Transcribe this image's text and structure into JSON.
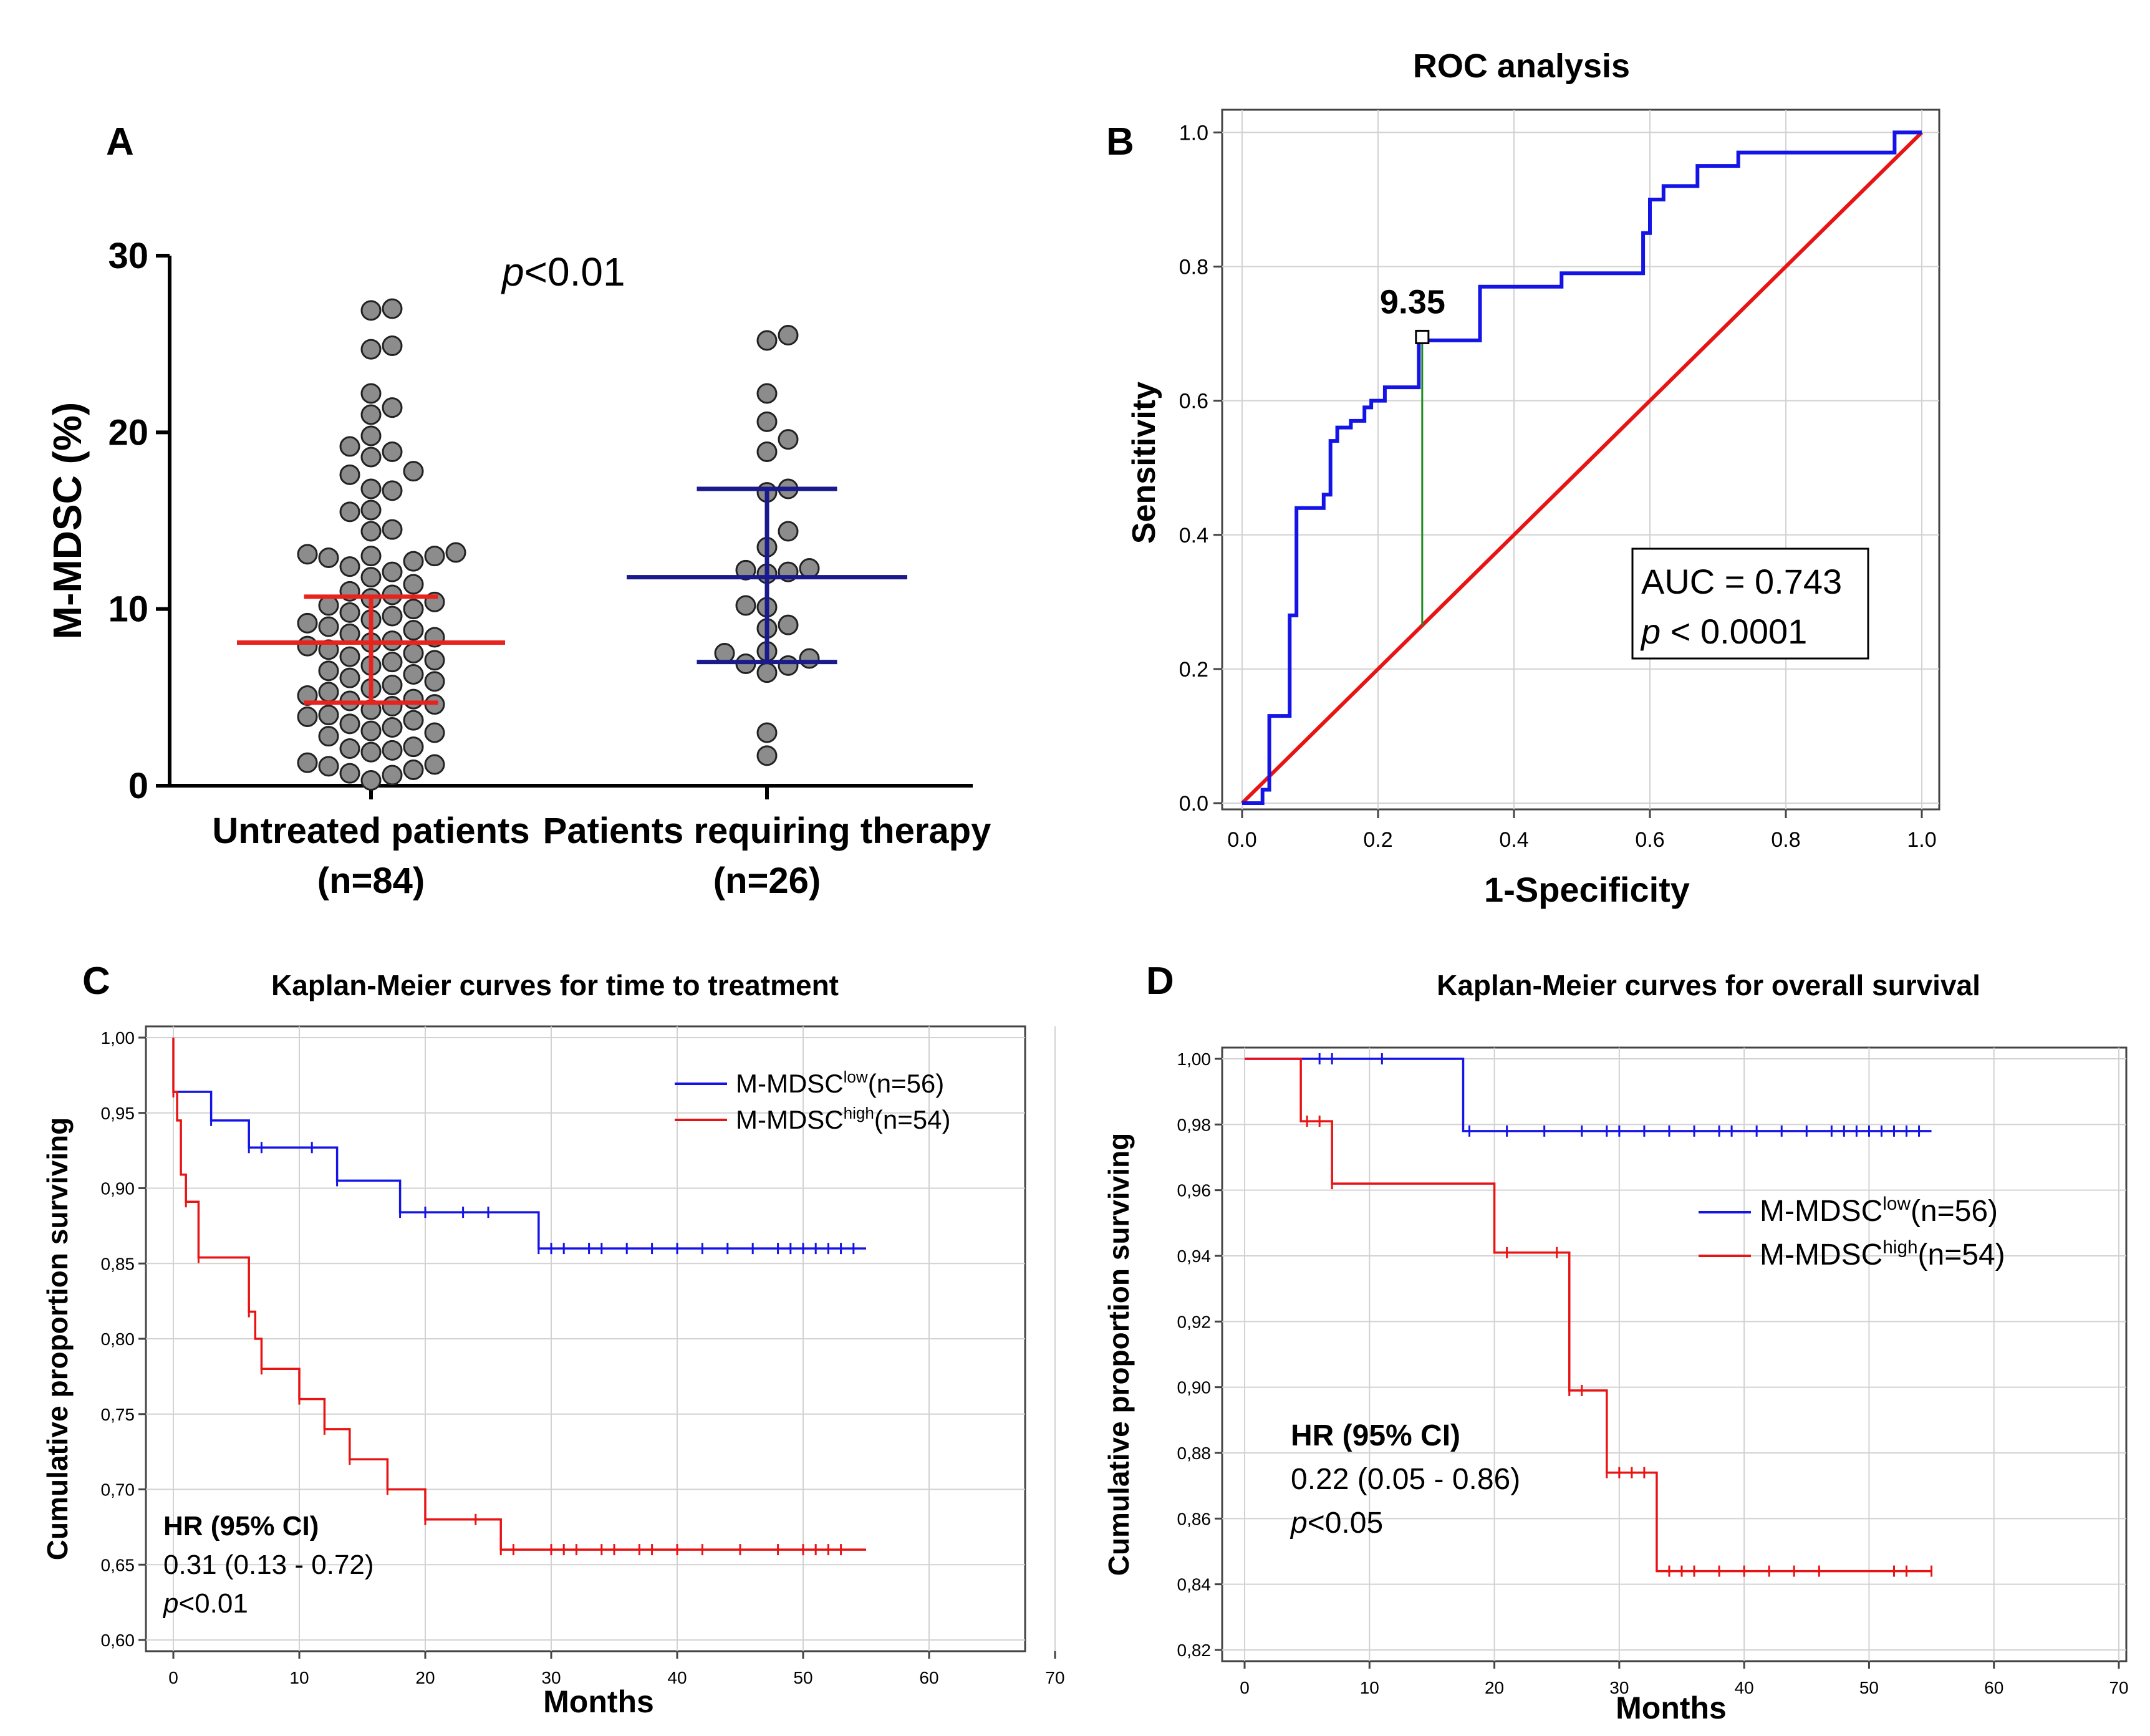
{
  "chart_data": [
    {
      "panel": "A",
      "type": "scatter",
      "title": "",
      "ylabel": "M-MDSC (%)",
      "ylim": [
        0,
        30
      ],
      "yticks": [
        0,
        10,
        20,
        30
      ],
      "annotation": {
        "italic": "p",
        "text": "<0.01"
      },
      "groups": [
        {
          "name_line1": "Untreated patients",
          "name_line2": "(n=84)",
          "summary_color": "#e8231e",
          "mean": 8.1,
          "lower": 4.7,
          "upper": 10.7,
          "points": [
            0.3,
            0.6,
            0.7,
            0.9,
            1.1,
            1.2,
            1.3,
            1.9,
            2.0,
            2.1,
            2.2,
            2.8,
            3.0,
            3.1,
            3.3,
            3.5,
            3.7,
            3.9,
            4.0,
            4.3,
            4.5,
            4.6,
            4.8,
            4.9,
            5.1,
            5.3,
            5.5,
            5.7,
            5.9,
            6.1,
            6.3,
            6.5,
            6.8,
            7.0,
            7.1,
            7.3,
            7.5,
            7.7,
            7.9,
            8.1,
            8.2,
            8.4,
            8.6,
            8.8,
            9.0,
            9.2,
            9.4,
            9.6,
            9.8,
            10.0,
            10.2,
            10.4,
            10.6,
            10.8,
            11.0,
            11.4,
            11.8,
            12.1,
            12.4,
            12.7,
            12.9,
            13.0,
            13.0,
            13.1,
            13.2,
            14.4,
            14.5,
            15.5,
            15.6,
            16.7,
            16.8,
            17.6,
            17.8,
            18.6,
            18.9,
            19.2,
            19.8,
            21.0,
            21.4,
            22.2,
            24.7,
            24.9,
            26.9,
            27.0
          ]
        },
        {
          "name_line1": "Patients requiring therapy",
          "name_line2": "(n=26)",
          "summary_color": "#1a1a8c",
          "mean": 11.8,
          "lower": 7.0,
          "upper": 16.8,
          "points": [
            1.7,
            3.0,
            6.4,
            6.8,
            7.2,
            7.6,
            6.9,
            7.5,
            8.9,
            9.1,
            10.1,
            10.2,
            12.0,
            12.1,
            12.2,
            12.3,
            13.5,
            14.4,
            16.6,
            16.8,
            18.9,
            19.6,
            20.6,
            22.2,
            25.2,
            25.5
          ]
        }
      ]
    },
    {
      "panel": "B",
      "type": "line",
      "title": "ROC analysis",
      "xlabel": "1-Specificity",
      "ylabel": "Sensitivity",
      "xlim": [
        0,
        1
      ],
      "ylim": [
        0,
        1
      ],
      "xticks": [
        "0.0",
        "0.2",
        "0.4",
        "0.6",
        "0.8",
        "1.0"
      ],
      "yticks": [
        "0.0",
        "0.2",
        "0.4",
        "0.6",
        "0.8",
        "1.0"
      ],
      "series": [
        {
          "name": "ROC curve",
          "color": "#1414e6",
          "x": [
            0.0,
            0.03,
            0.03,
            0.04,
            0.04,
            0.07,
            0.07,
            0.08,
            0.08,
            0.12,
            0.12,
            0.13,
            0.13,
            0.14,
            0.14,
            0.16,
            0.16,
            0.18,
            0.18,
            0.19,
            0.19,
            0.21,
            0.21,
            0.26,
            0.26,
            0.35,
            0.35,
            0.47,
            0.47,
            0.59,
            0.59,
            0.6,
            0.6,
            0.62,
            0.62,
            0.67,
            0.67,
            0.73,
            0.73,
            0.96,
            0.96,
            1.0
          ],
          "y": [
            0.0,
            0.0,
            0.02,
            0.02,
            0.13,
            0.13,
            0.28,
            0.28,
            0.44,
            0.44,
            0.46,
            0.46,
            0.54,
            0.54,
            0.56,
            0.56,
            0.57,
            0.57,
            0.59,
            0.59,
            0.6,
            0.6,
            0.62,
            0.62,
            0.69,
            0.69,
            0.77,
            0.77,
            0.79,
            0.79,
            0.85,
            0.85,
            0.9,
            0.9,
            0.92,
            0.92,
            0.95,
            0.95,
            0.97,
            0.97,
            1.0,
            1.0
          ]
        },
        {
          "name": "Reference",
          "color": "#e81414",
          "x": [
            0,
            1
          ],
          "y": [
            0,
            1
          ]
        }
      ],
      "cutoff": {
        "label": "9.35",
        "x": 0.265,
        "y": 0.695
      },
      "annotation": {
        "auc_text": "AUC = 0.743",
        "p_italic": "p",
        "p_text": " < 0.0001"
      }
    },
    {
      "panel": "C",
      "type": "line",
      "title": "Kaplan-Meier curves for time to treatment",
      "xlabel": "Months",
      "ylabel": "Cumulative proportion surviving",
      "xlim": [
        0,
        70
      ],
      "ylim": [
        0.6,
        1.0
      ],
      "xticks": [
        "0",
        "10",
        "20",
        "30",
        "40",
        "50",
        "60",
        "70"
      ],
      "yticks": [
        "0,60",
        "0,65",
        "0,70",
        "0,75",
        "0,80",
        "0,85",
        "0,90",
        "0,95",
        "1,00"
      ],
      "legend": [
        {
          "base": "M-MDSC",
          "sup": "low",
          "rest": "(n=56)",
          "color": "#1414e6"
        },
        {
          "base": "M-MDSC",
          "sup": "high",
          "rest": "(n=54)",
          "color": "#e81414"
        }
      ],
      "hr": {
        "title": "HR  (95% CI)",
        "value": "0.31 (0.13 - 0.72)",
        "p_italic": "p",
        "p_text": "<0.01"
      },
      "series": [
        {
          "name": "M-MDSC low (n=56)",
          "color": "#1414e6",
          "x": [
            0,
            3,
            3,
            6,
            6,
            13,
            13,
            18,
            18,
            29,
            29,
            55
          ],
          "y": [
            0.964,
            0.964,
            0.945,
            0.945,
            0.927,
            0.927,
            0.905,
            0.905,
            0.884,
            0.884,
            0.86,
            0.86
          ],
          "censored_x": [
            3,
            6,
            7,
            11,
            13,
            18,
            20,
            23,
            25,
            29,
            30,
            31,
            33,
            34,
            36,
            38,
            40,
            42,
            44,
            46,
            48,
            49,
            50,
            51,
            52,
            53,
            54
          ]
        },
        {
          "name": "M-MDSC high (n=54)",
          "color": "#e81414",
          "x": [
            0,
            0,
            0.3,
            0.3,
            0.6,
            0.6,
            1,
            1,
            2,
            2,
            6,
            6,
            6.5,
            6.5,
            7,
            7,
            10,
            10,
            12,
            12,
            14,
            14,
            17,
            17,
            20,
            20,
            26,
            26,
            55
          ],
          "y": [
            1.0,
            0.964,
            0.964,
            0.945,
            0.945,
            0.909,
            0.909,
            0.891,
            0.891,
            0.854,
            0.854,
            0.818,
            0.818,
            0.8,
            0.8,
            0.78,
            0.78,
            0.76,
            0.76,
            0.74,
            0.74,
            0.72,
            0.72,
            0.7,
            0.7,
            0.68,
            0.68,
            0.66,
            0.66
          ],
          "censored_x": [
            0,
            1,
            2,
            6,
            7,
            10,
            12,
            14,
            17,
            20,
            24,
            26,
            27,
            30,
            31,
            32,
            34,
            35,
            37,
            38,
            40,
            42,
            45,
            48,
            50,
            51,
            52,
            53
          ]
        }
      ]
    },
    {
      "panel": "D",
      "type": "line",
      "title": "Kaplan-Meier curves for overall survival",
      "xlabel": "Months",
      "ylabel": "Cumulative proportion surviving",
      "xlim": [
        0,
        70
      ],
      "ylim": [
        0.82,
        1.0
      ],
      "xticks": [
        "0",
        "10",
        "20",
        "30",
        "40",
        "50",
        "60",
        "70"
      ],
      "yticks": [
        "0,82",
        "0,84",
        "0,86",
        "0,88",
        "0,90",
        "0,92",
        "0,94",
        "0,96",
        "0,98",
        "1,00"
      ],
      "legend": [
        {
          "base": "M-MDSC",
          "sup": "low",
          "rest": "(n=56)",
          "color": "#1414e6"
        },
        {
          "base": "M-MDSC",
          "sup": "high",
          "rest": "(n=54)",
          "color": "#e81414"
        }
      ],
      "hr": {
        "title": "HR  (95% CI)",
        "value": "0.22 (0.05 - 0.86)",
        "p_italic": "p",
        "p_text": "<0.05"
      },
      "series": [
        {
          "name": "M-MDSC low (n=56)",
          "color": "#1414e6",
          "x": [
            0,
            17.5,
            17.5,
            55
          ],
          "y": [
            1.0,
            1.0,
            0.978,
            0.978
          ],
          "censored_x": [
            6,
            7,
            11,
            18,
            21,
            24,
            27,
            29,
            30,
            32,
            34,
            36,
            38,
            39,
            41,
            43,
            45,
            47,
            48,
            49,
            50,
            51,
            52,
            53,
            54
          ]
        },
        {
          "name": "M-MDSC high (n=54)",
          "color": "#e81414",
          "x": [
            0,
            4.5,
            4.5,
            7,
            7,
            20,
            20,
            26,
            26,
            29,
            29,
            33,
            33,
            55
          ],
          "y": [
            1.0,
            1.0,
            0.981,
            0.981,
            0.962,
            0.962,
            0.941,
            0.941,
            0.899,
            0.899,
            0.874,
            0.874,
            0.844,
            0.844
          ],
          "censored_x": [
            5,
            6,
            7,
            21,
            25,
            26,
            27,
            29,
            30,
            31,
            32,
            34,
            35,
            36,
            38,
            40,
            42,
            44,
            46,
            52,
            53,
            55
          ]
        }
      ]
    }
  ],
  "panel_labels": {
    "a": "A",
    "b": "B",
    "c": "C",
    "d": "D"
  }
}
